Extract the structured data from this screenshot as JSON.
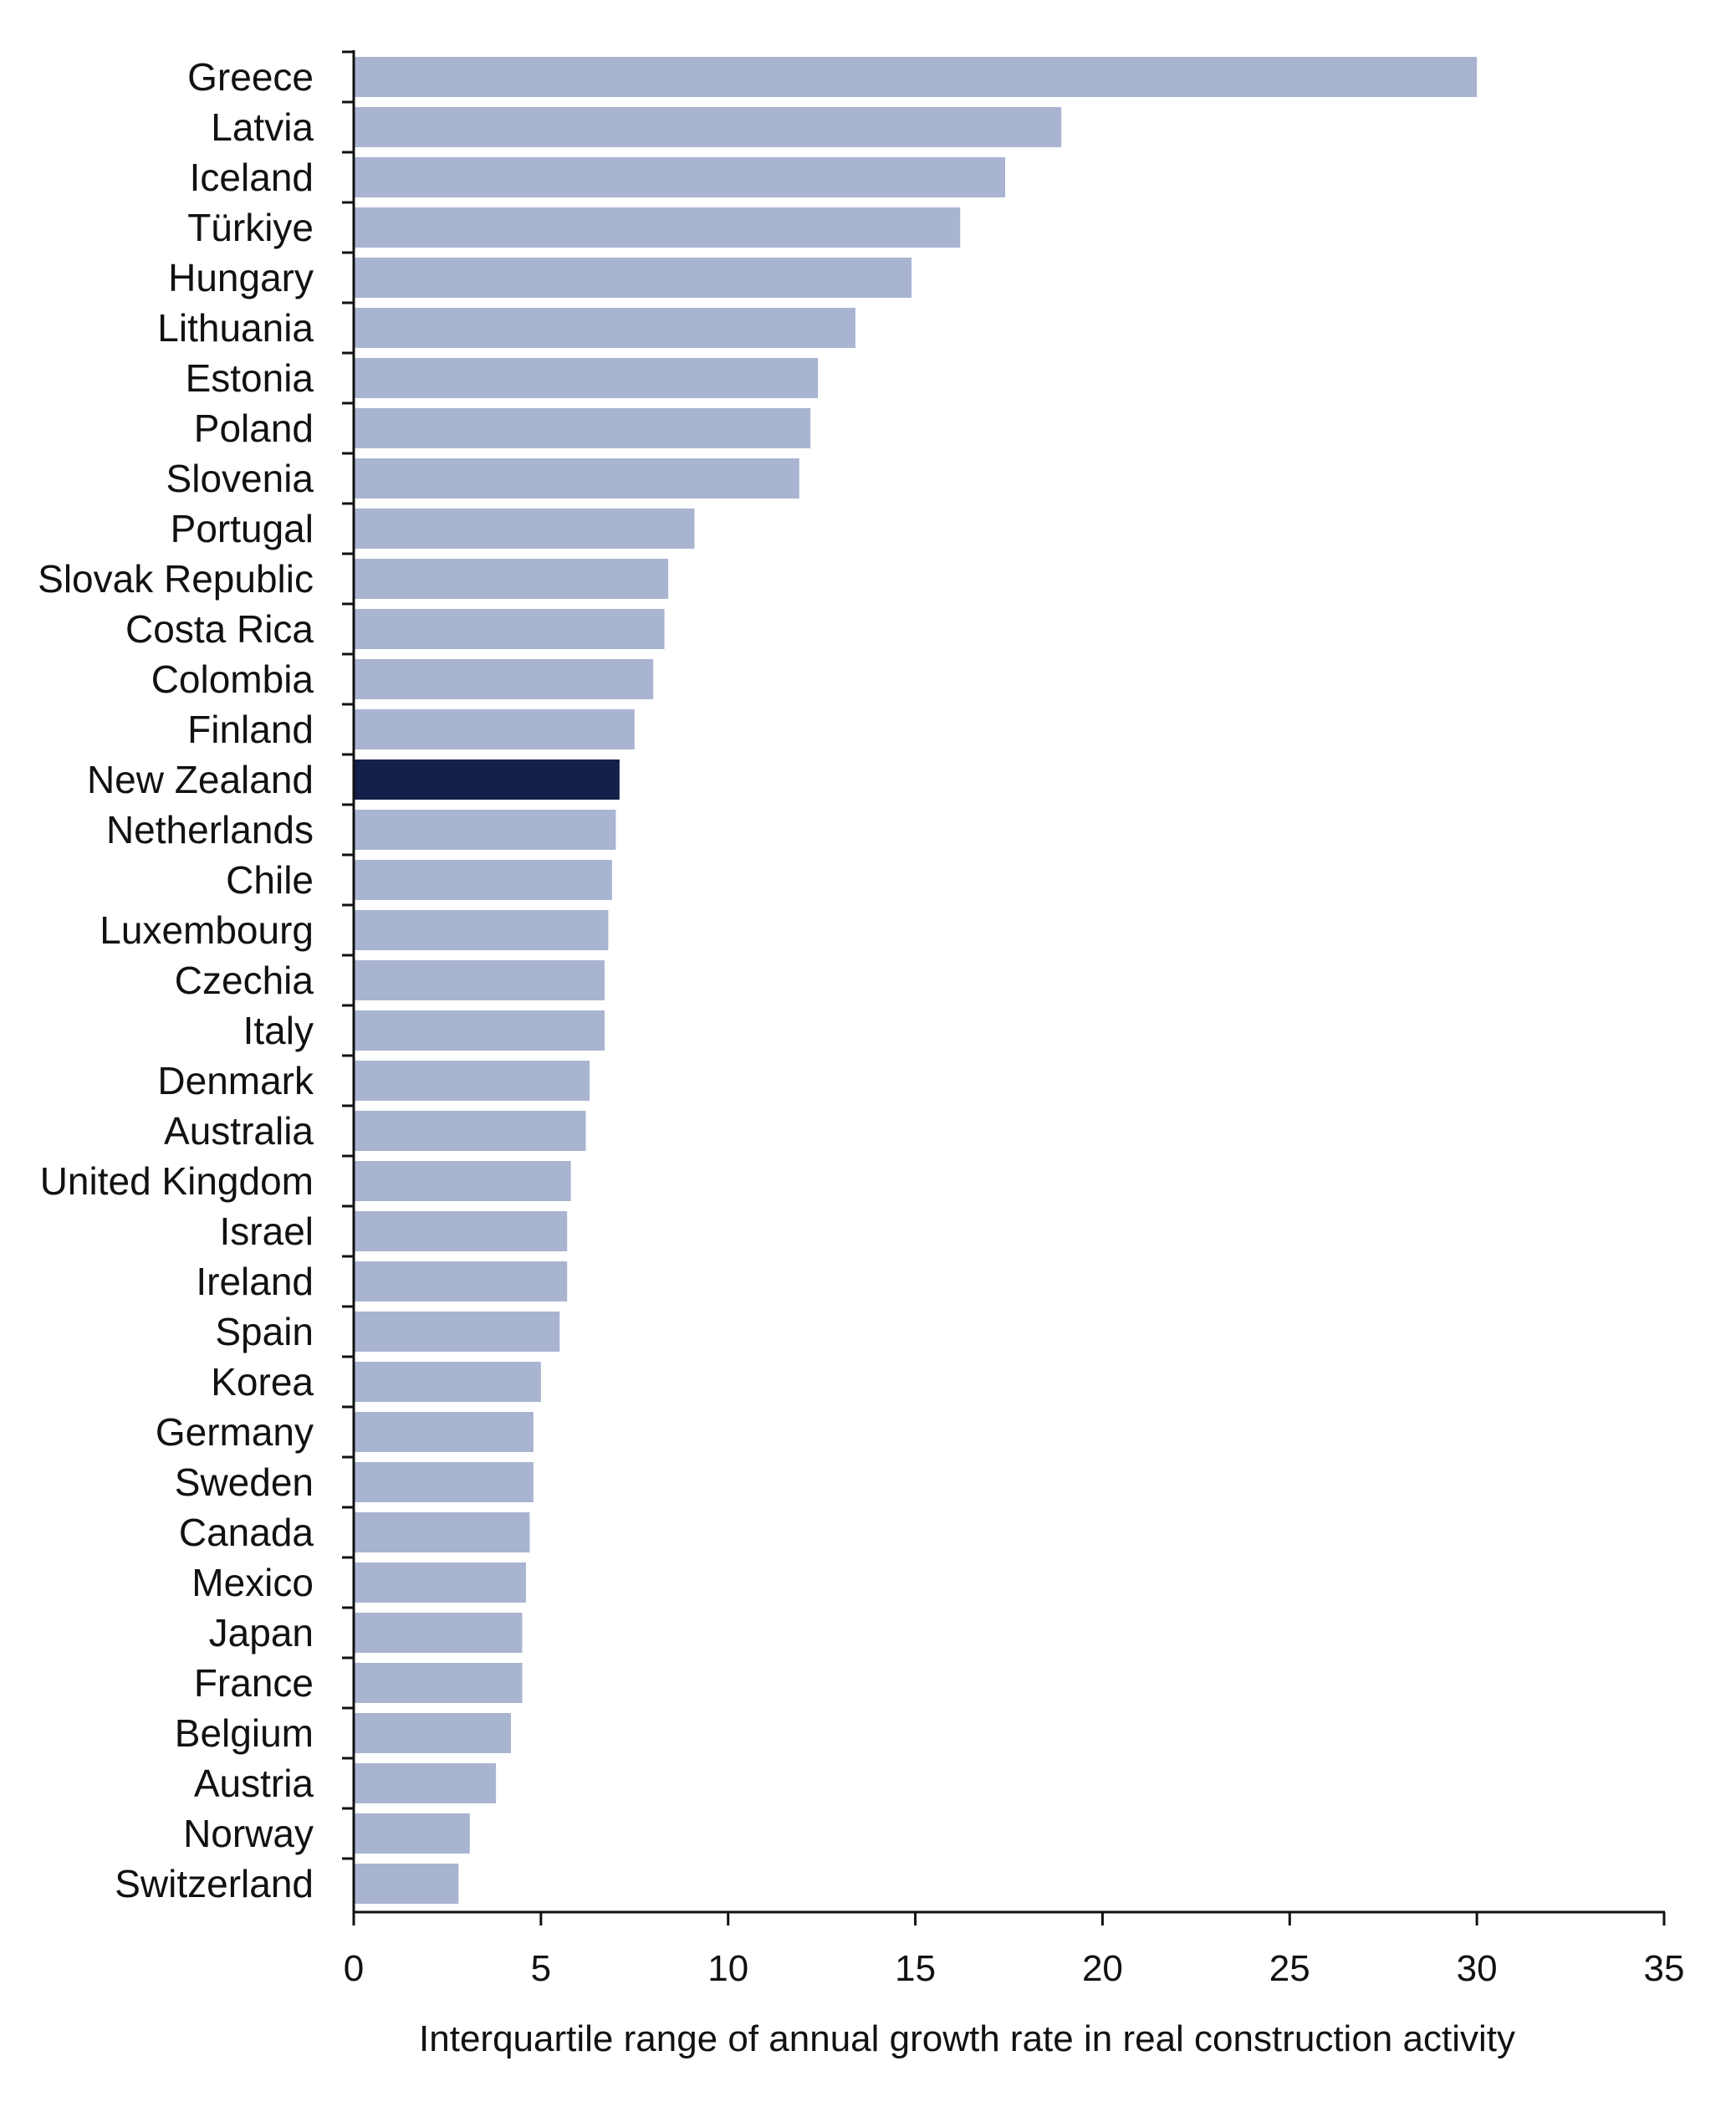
{
  "chart_data": {
    "type": "bar",
    "orientation": "horizontal",
    "title": "",
    "xlabel": "Interquartile range of annual growth rate in real construction activity",
    "ylabel": "",
    "xlim": [
      0,
      35
    ],
    "xticks": [
      0,
      5,
      10,
      15,
      20,
      25,
      30,
      35
    ],
    "grid": false,
    "legend": "none",
    "colors": {
      "default": "#A9B4D1",
      "highlight": "#14204A"
    },
    "highlight": "New Zealand",
    "categories": [
      "Greece",
      "Latvia",
      "Iceland",
      "Türkiye",
      "Hungary",
      "Lithuania",
      "Estonia",
      "Poland",
      "Slovenia",
      "Portugal",
      "Slovak Republic",
      "Costa Rica",
      "Colombia",
      "Finland",
      "New Zealand",
      "Netherlands",
      "Chile",
      "Luxembourg",
      "Czechia",
      "Italy",
      "Denmark",
      "Australia",
      "United Kingdom",
      "Israel",
      "Ireland",
      "Spain",
      "Korea",
      "Germany",
      "Sweden",
      "Canada",
      "Mexico",
      "Japan",
      "France",
      "Belgium",
      "Austria",
      "Norway",
      "Switzerland"
    ],
    "values": [
      30.0,
      18.9,
      17.4,
      16.2,
      14.9,
      13.4,
      12.4,
      12.2,
      11.9,
      9.1,
      8.4,
      8.3,
      8.0,
      7.5,
      7.1,
      7.0,
      6.9,
      6.8,
      6.7,
      6.7,
      6.3,
      6.2,
      5.8,
      5.7,
      5.7,
      5.5,
      5.0,
      4.8,
      4.8,
      4.7,
      4.6,
      4.5,
      4.5,
      4.2,
      3.8,
      3.1,
      2.8
    ]
  }
}
